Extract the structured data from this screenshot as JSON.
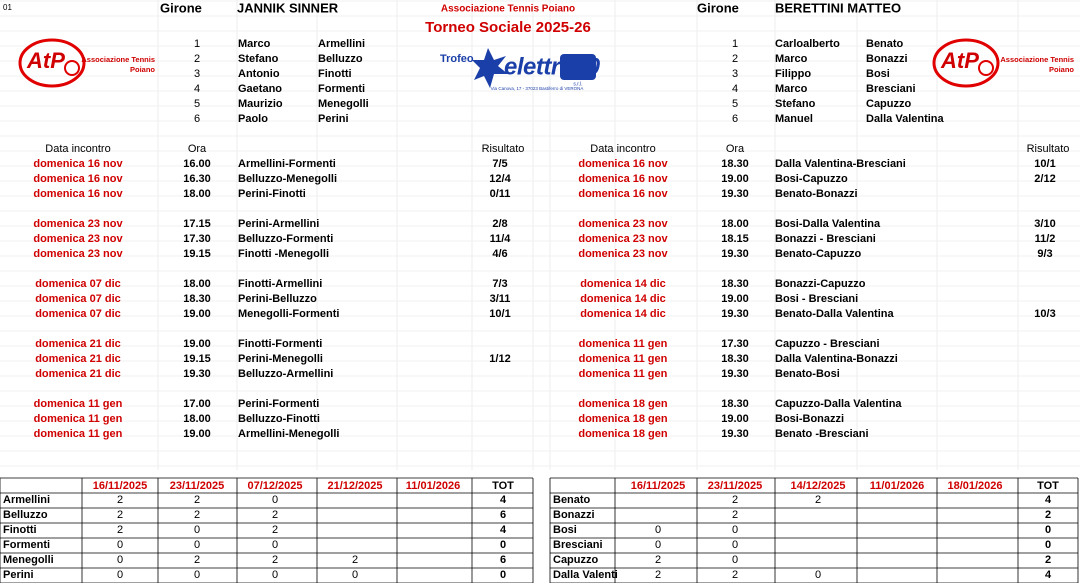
{
  "sheet_label": "01",
  "header": {
    "club": "Associazione Tennis Poiano",
    "title": "Torneo Sociale 2025-26",
    "sponsor_label": "Trofeo"
  },
  "logos": {
    "atp": "AtP",
    "club_line1": "Associazione Tennis",
    "club_line2": "Poiano",
    "sponsor": "elettro90",
    "sponsor_sub": "s.r.l.",
    "sponsor_address": "Via Canova, 17 - 37023 Bastiferro di VERONA"
  },
  "groups": [
    {
      "label": "Girone",
      "name": "JANNIK SINNER",
      "players": [
        [
          1,
          "Marco",
          "Armellini"
        ],
        [
          2,
          "Stefano",
          "Belluzzo"
        ],
        [
          3,
          "Antonio",
          "Finotti"
        ],
        [
          4,
          "Gaetano",
          "Formenti"
        ],
        [
          5,
          "Maurizio",
          "Menegolli"
        ],
        [
          6,
          "Paolo",
          "Perini"
        ]
      ],
      "schedule_headers": [
        "Data incontro",
        "Ora",
        "Risultato"
      ],
      "matches": [
        [
          "domenica 16 nov",
          "16.00",
          "Armellini-Formenti",
          "7/5"
        ],
        [
          "domenica 16 nov",
          "16.30",
          "Belluzzo-Menegolli",
          "12/4"
        ],
        [
          "domenica 16 nov",
          "18.00",
          "Perini-Finotti",
          "0/11"
        ],
        [
          "domenica 23 nov",
          "17.15",
          "Perini-Armellini",
          "2/8"
        ],
        [
          "domenica 23 nov",
          "17.30",
          "Belluzzo-Formenti",
          "11/4"
        ],
        [
          "domenica 23 nov",
          "19.15",
          "Finotti -Menegolli",
          "4/6"
        ],
        [
          "domenica 07 dic",
          "18.00",
          "Finotti-Armellini",
          "7/3"
        ],
        [
          "domenica 07 dic",
          "18.30",
          "Perini-Belluzzo",
          "3/11"
        ],
        [
          "domenica 07 dic",
          "19.00",
          "Menegolli-Formenti",
          "10/1"
        ],
        [
          "domenica 21 dic",
          "19.00",
          "Finotti-Formenti",
          null
        ],
        [
          "domenica 21 dic",
          "19.15",
          "Perini-Menegolli",
          "1/12"
        ],
        [
          "domenica 21 dic",
          "19.30",
          "Belluzzo-Armellini",
          null
        ],
        [
          "domenica 11 gen",
          "17.00",
          "Perini-Formenti",
          null
        ],
        [
          "domenica 11 gen",
          "18.00",
          "Belluzzo-Finotti",
          null
        ],
        [
          "domenica 11 gen",
          "19.00",
          "Armellini-Menegolli",
          null
        ]
      ],
      "standings": {
        "headers": [
          "16/11/2025",
          "23/11/2025",
          "07/12/2025",
          "21/12/2025",
          "11/01/2026",
          "TOT"
        ],
        "rows": [
          [
            "Armellini",
            2,
            2,
            0,
            null,
            null,
            4
          ],
          [
            "Belluzzo",
            2,
            2,
            2,
            null,
            null,
            6
          ],
          [
            "Finotti",
            2,
            0,
            2,
            null,
            null,
            4
          ],
          [
            "Formenti",
            0,
            0,
            0,
            null,
            null,
            0
          ],
          [
            "Menegolli",
            0,
            2,
            2,
            2,
            null,
            6
          ],
          [
            "Perini",
            0,
            0,
            0,
            0,
            null,
            0
          ]
        ]
      }
    },
    {
      "label": "Girone",
      "name": "BERETTINI MATTEO",
      "players": [
        [
          1,
          "Carloalberto",
          "Benato"
        ],
        [
          2,
          "Marco",
          "Bonazzi"
        ],
        [
          3,
          "Filippo",
          "Bosi"
        ],
        [
          4,
          "Marco",
          "Bresciani"
        ],
        [
          5,
          "Stefano",
          "Capuzzo"
        ],
        [
          6,
          "Manuel",
          "Dalla Valentina"
        ]
      ],
      "schedule_headers": [
        "Data incontro",
        "Ora",
        "Risultato"
      ],
      "matches": [
        [
          "domenica 16 nov",
          "18.30",
          "Dalla Valentina-Bresciani",
          "10/1"
        ],
        [
          "domenica 16 nov",
          "19.00",
          "Bosi-Capuzzo",
          "2/12"
        ],
        [
          "domenica 16 nov",
          "19.30",
          "Benato-Bonazzi",
          null
        ],
        [
          "domenica 23 nov",
          "18.00",
          "Bosi-Dalla Valentina",
          "3/10"
        ],
        [
          "domenica 23 nov",
          "18.15",
          "Bonazzi - Bresciani",
          "11/2"
        ],
        [
          "domenica 23 nov",
          "19.30",
          "Benato-Capuzzo",
          "9/3"
        ],
        [
          "domenica 14 dic",
          "18.30",
          "Bonazzi-Capuzzo",
          null
        ],
        [
          "domenica 14 dic",
          "19.00",
          "Bosi - Bresciani",
          null
        ],
        [
          "domenica 14 dic",
          "19.30",
          "Benato-Dalla Valentina",
          "10/3"
        ],
        [
          "domenica 11 gen",
          "17.30",
          "Capuzzo - Bresciani",
          null
        ],
        [
          "domenica 11 gen",
          "18.30",
          "Dalla Valentina-Bonazzi",
          null
        ],
        [
          "domenica 11 gen",
          "19.30",
          "Benato-Bosi",
          null
        ],
        [
          "domenica 18 gen",
          "18.30",
          "Capuzzo-Dalla Valentina",
          null
        ],
        [
          "domenica 18 gen",
          "19.00",
          "Bosi-Bonazzi",
          null
        ],
        [
          "domenica 18 gen",
          "19.30",
          "Benato -Bresciani",
          null
        ]
      ],
      "standings": {
        "headers": [
          "16/11/2025",
          "23/11/2025",
          "14/12/2025",
          "11/01/2026",
          "18/01/2026",
          "TOT"
        ],
        "rows": [
          [
            "Benato",
            null,
            2,
            2,
            null,
            null,
            4
          ],
          [
            "Bonazzi",
            null,
            2,
            null,
            null,
            null,
            2
          ],
          [
            "Bosi",
            0,
            0,
            null,
            null,
            null,
            0
          ],
          [
            "Bresciani",
            0,
            0,
            null,
            null,
            null,
            0
          ],
          [
            "Capuzzo",
            2,
            0,
            null,
            null,
            null,
            2
          ],
          [
            "Dalla Valenti",
            2,
            2,
            0,
            null,
            null,
            4
          ]
        ]
      }
    }
  ]
}
